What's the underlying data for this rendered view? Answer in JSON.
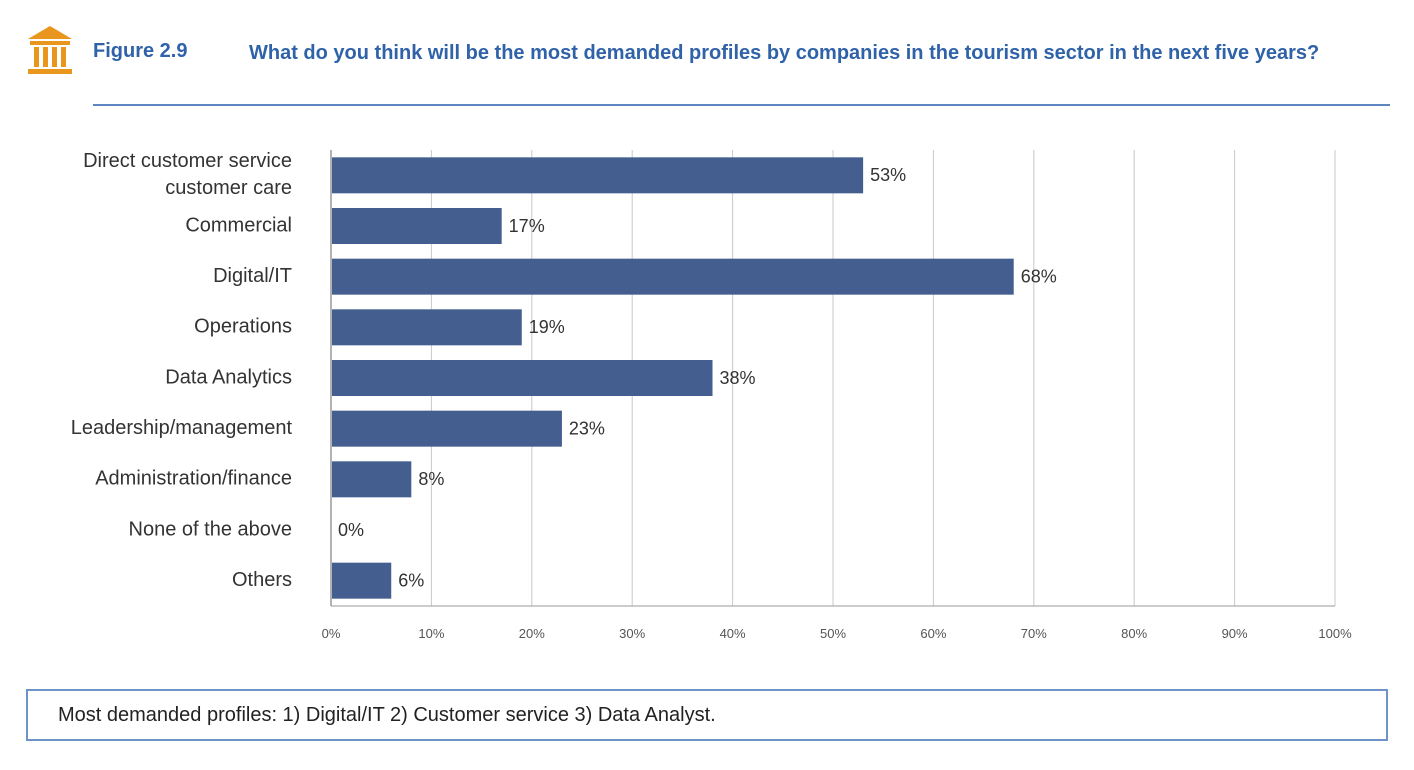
{
  "header": {
    "figure_number": "Figure 2.9",
    "title": "What do you think will be the most demanded profiles by companies in the tourism sector in the next five years?",
    "icon": "museum-columns-icon",
    "accent_color": "#2f62a8",
    "icon_color": "#e8961e"
  },
  "chart_data": {
    "type": "bar",
    "orientation": "horizontal",
    "categories": [
      "Direct customer service customer care",
      "Commercial",
      "Digital/IT",
      "Operations",
      "Data Analytics",
      "Leadership/management",
      "Administration/finance",
      "None of the above",
      "Others"
    ],
    "category_lines": [
      [
        "Direct customer service",
        "customer care"
      ],
      [
        "Commercial"
      ],
      [
        "Digital/IT"
      ],
      [
        "Operations"
      ],
      [
        "Data Analytics"
      ],
      [
        "Leadership/management"
      ],
      [
        "Administration/finance"
      ],
      [
        "None of the above"
      ],
      [
        "Others"
      ]
    ],
    "values": [
      53,
      17,
      68,
      19,
      38,
      23,
      8,
      0,
      6
    ],
    "data_labels": [
      "53%",
      "17%",
      "68%",
      "19%",
      "38%",
      "23%",
      "8%",
      "0%",
      "6%"
    ],
    "xlim": [
      0,
      100
    ],
    "x_ticks": [
      0,
      10,
      20,
      30,
      40,
      50,
      60,
      70,
      80,
      90,
      100
    ],
    "x_tick_labels": [
      "0%",
      "10%",
      "20%",
      "30%",
      "40%",
      "50%",
      "60%",
      "70%",
      "80%",
      "90%",
      "100%"
    ],
    "title": "",
    "xlabel": "",
    "ylabel": "",
    "grid": true,
    "legend": "none",
    "bar_color": "#445f8f",
    "grid_color": "#c8c8c8"
  },
  "note": {
    "text": "Most demanded profiles: 1) Digital/IT 2) Customer service 3) Data Analyst.",
    "border_color": "#6e93c6"
  }
}
